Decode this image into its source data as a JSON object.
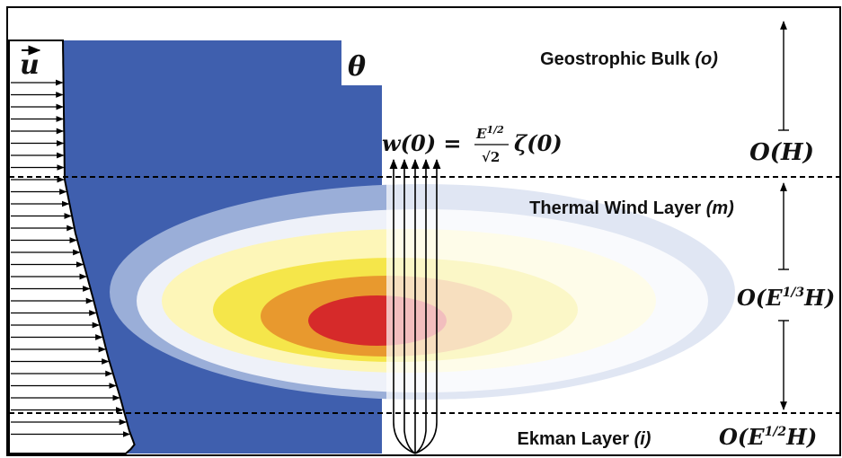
{
  "labels": {
    "velocity": "u",
    "temperature": "θ",
    "vertical_velocity": {
      "lhs": "w(0) =",
      "numerator": "E",
      "num_exp": "1/2",
      "denominator": "√2",
      "rhs": "ζ(0)"
    },
    "layers": [
      {
        "name": "Geostrophic Bulk",
        "tag": "(o)",
        "scale": {
          "lead": "O(H)"
        }
      },
      {
        "name": "Thermal Wind Layer",
        "tag": "(m)",
        "scale": {
          "lead": "O(E",
          "exp": "1/3",
          "tail": "H)"
        }
      },
      {
        "name": "Ekman Layer",
        "tag": "(i)",
        "scale": {
          "lead": "O(E",
          "exp": "1/2",
          "tail": "H)"
        }
      }
    ]
  }
}
